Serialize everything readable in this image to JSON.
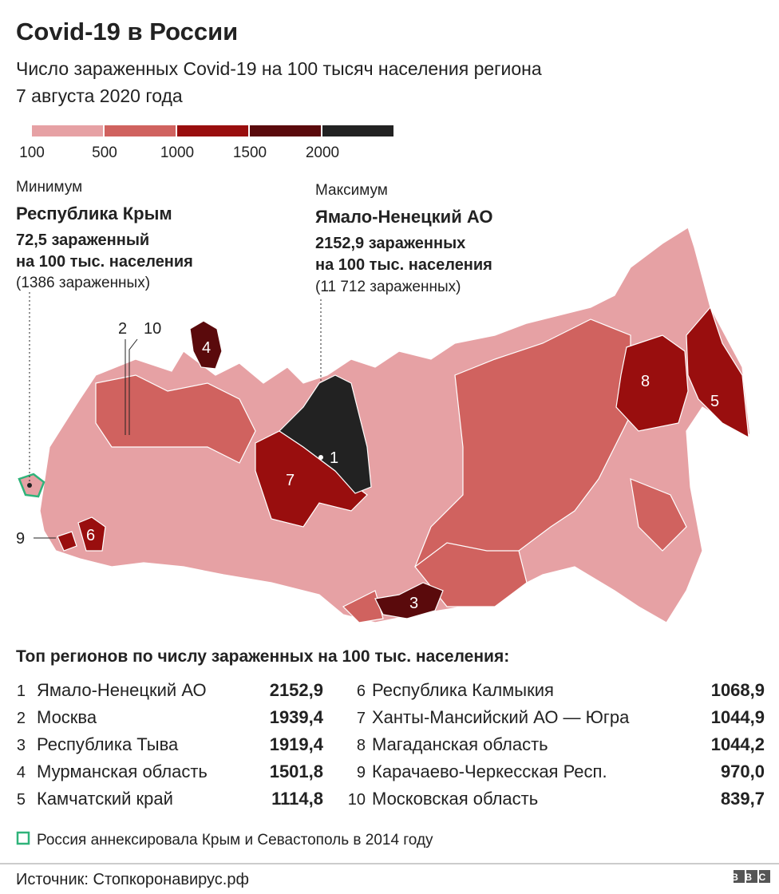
{
  "header": {
    "title": "Covid-19 в России",
    "subtitle": [
      "Число зараженных Covid-19 на 100 тысяч населения региона",
      "7 августа 2020 года"
    ]
  },
  "legend": {
    "colors": [
      "#e6a1a4",
      "#d0625f",
      "#990e0e",
      "#5a0a0c",
      "#222222"
    ],
    "labels": [
      "100",
      "500",
      "1000",
      "1500",
      "2000"
    ]
  },
  "minimum": {
    "label": "Минимум",
    "region": "Республика Крым",
    "rate_lines": [
      "72,5 зараженный",
      "на 100 тыс. населения"
    ],
    "total": "(1386 зараженных)"
  },
  "maximum": {
    "label": "Максимум",
    "region": "Ямало-Ненецкий АО",
    "rate_lines": [
      "2152,9 зараженных",
      "на 100 тыс. населения"
    ],
    "total": "(11 712 зараженных)"
  },
  "table": {
    "title": "Топ регионов по числу зараженных на 100 тыс. населения:",
    "rows": [
      [
        "1",
        "Ямало-Ненецкий АО",
        "2152,9"
      ],
      [
        "2",
        "Москва",
        "1939,4"
      ],
      [
        "3",
        "Республика Тыва",
        "1919,4"
      ],
      [
        "4",
        "Мурманская область",
        "1501,8"
      ],
      [
        "5",
        "Камчатский край",
        "1114,8"
      ],
      [
        "6",
        "Республика Калмыкия",
        "1068,9"
      ],
      [
        "7",
        "Ханты-Мансийский АО — Югра",
        "1044,9"
      ],
      [
        "8",
        "Магаданская область",
        "1044,2"
      ],
      [
        "9",
        "Карачаево-Черкесская Респ.",
        "970,0"
      ],
      [
        "10",
        "Московская область",
        "839,7"
      ]
    ]
  },
  "footnote": "Россия аннексировала Крым и Севастополь в 2014 году",
  "source": "Источник: Стопкоронавирус.рф",
  "logo": "BBC"
}
